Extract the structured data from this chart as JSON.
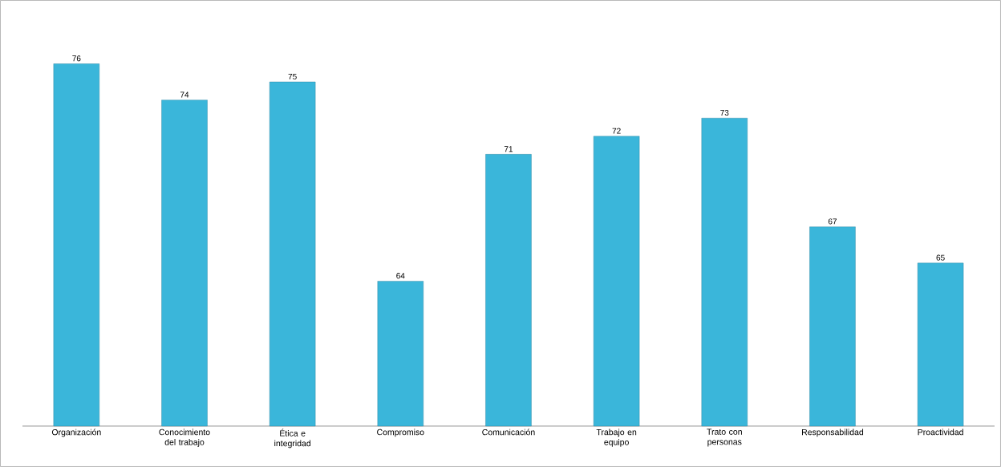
{
  "chart_data": {
    "type": "bar",
    "categories": [
      "Organización",
      "Conocimiento del trabajo",
      "Ética e integridad",
      "Compromiso",
      "Comunicación",
      "Trabajo en equipo",
      "Trato con personas",
      "Responsabilidad",
      "Proactividad"
    ],
    "values": [
      76,
      74,
      75,
      64,
      71,
      72,
      73,
      67,
      65
    ],
    "color": "#3ab6da",
    "ylim": [
      56,
      79.5
    ],
    "data_labels": true,
    "tick_labels": "x"
  }
}
